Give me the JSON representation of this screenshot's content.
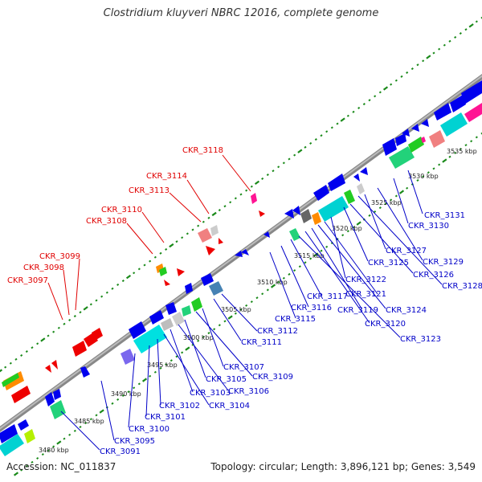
{
  "title": "Clostridium kluyveri NBRC 12016, complete genome",
  "footer": {
    "accession": "Accession: NC_011837",
    "summary": "Topology: circular; Length: 3,896,121 bp; Genes: 3,549"
  },
  "colors": {
    "backbone": "#888888",
    "tick_dots": "#1a8a1a",
    "forward_genes": "#0000ee",
    "reverse_genes": "#ee0000",
    "red_labels": "#e00000",
    "blue_labels": "#0000c8"
  },
  "ticks": [
    "3480 kbp",
    "3485 kbp",
    "3490 kbp",
    "3495 kbp",
    "3500 kbp",
    "3505 kbp",
    "3510 kbp",
    "3515 kbp",
    "3520 kbp",
    "3525 kbp",
    "3530 kbp",
    "3535 kbp"
  ],
  "labels_top": [
    "CKR_3118",
    "CKR_3114",
    "CKR_3113",
    "CKR_3110",
    "CKR_3108",
    "CKR_3099",
    "CKR_3098",
    "CKR_3097"
  ],
  "labels_bottom": [
    "CKR_3131",
    "CKR_3130",
    "CKR_3129",
    "CKR_3127",
    "CKR_3128",
    "CKR_3126",
    "CKR_3125",
    "CKR_3122",
    "CKR_3121",
    "CKR_3124",
    "CKR_3119",
    "CKR_3120",
    "CKR_3123",
    "CKR_3117",
    "CKR_3116",
    "CKR_3115",
    "CKR_3112",
    "CKR_3111",
    "CKR_3107",
    "CKR_3109",
    "CKR_3105",
    "CKR_3106",
    "CKR_3103",
    "CKR_3104",
    "CKR_3102",
    "CKR_3101",
    "CKR_3100",
    "CKR_3095",
    "CKR_3091"
  ]
}
